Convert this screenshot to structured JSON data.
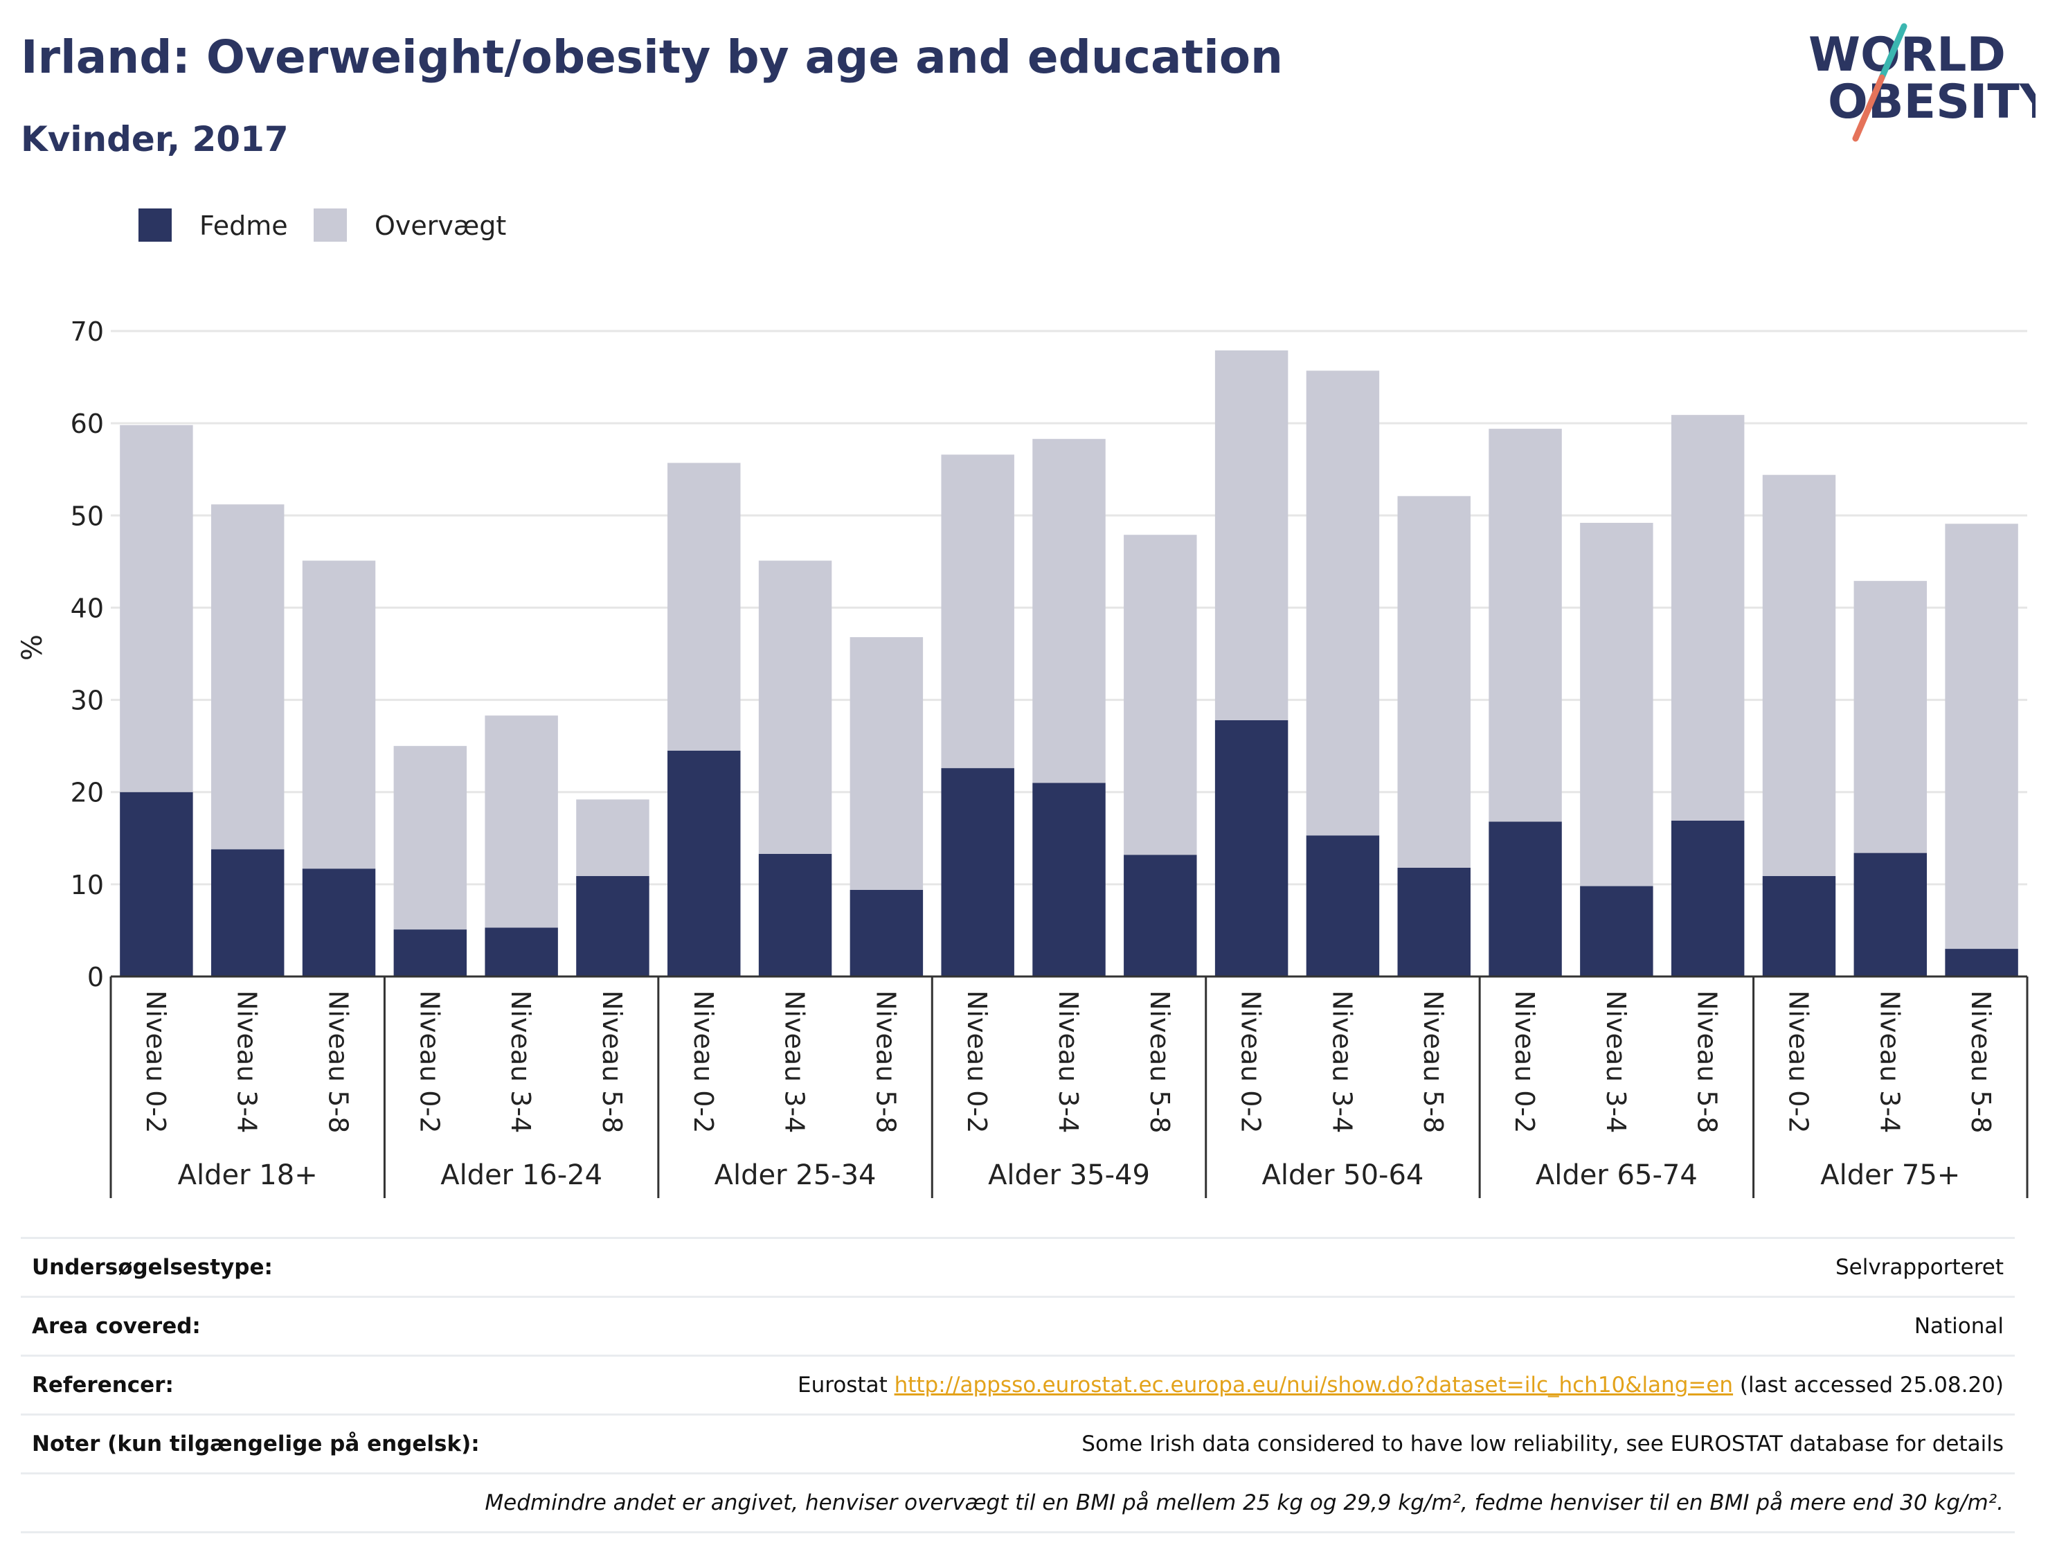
{
  "header": {
    "title": "Irland: Overweight/obesity by age and education",
    "subtitle": "Kvinder, 2017"
  },
  "logo": {
    "line1": "WORLD",
    "line2": "OBESITY"
  },
  "colors": {
    "fedme": "#2b3561",
    "overvaegt": "#c9cad6",
    "grid": "#e6e6e6",
    "link": "#e3a21a",
    "title": "#2b3561"
  },
  "chart_data": {
    "type": "bar",
    "stacked": true,
    "title": "",
    "ylabel": "%",
    "ylim": [
      0,
      70
    ],
    "yticks": [
      0,
      10,
      20,
      30,
      40,
      50,
      60,
      70
    ],
    "legend_position": "top-left",
    "groups": [
      "Alder 18+",
      "Alder 16-24",
      "Alder 25-34",
      "Alder 35-49",
      "Alder 50-64",
      "Alder 65-74",
      "Alder 75+"
    ],
    "sublevels": [
      "Niveau 0-2",
      "Niveau 3-4",
      "Niveau 5-8"
    ],
    "series": [
      {
        "name": "Fedme",
        "color": "#2b3561",
        "values": [
          20.0,
          13.8,
          11.7,
          5.1,
          5.3,
          10.9,
          24.5,
          13.3,
          9.4,
          22.6,
          21.0,
          13.2,
          27.8,
          15.3,
          11.8,
          16.8,
          9.8,
          16.9,
          10.9,
          13.4,
          3.0
        ]
      },
      {
        "name": "Overvægt",
        "color": "#c9cad6",
        "values": [
          39.8,
          37.4,
          33.4,
          19.9,
          23.0,
          8.3,
          31.2,
          31.8,
          27.4,
          34.0,
          37.3,
          34.7,
          40.1,
          50.4,
          40.3,
          42.6,
          39.4,
          44.0,
          43.5,
          29.5,
          46.1
        ]
      }
    ]
  },
  "info": [
    {
      "label": "Undersøgelsestype:",
      "value": "Selvrapporteret"
    },
    {
      "label": "Area covered:",
      "value": "National"
    },
    {
      "label": "Referencer:",
      "value_prefix": "Eurostat ",
      "link": "http://appsso.eurostat.ec.europa.eu/nui/show.do?dataset=ilc_hch10&lang=en",
      "value_suffix": " (last accessed 25.08.20)"
    },
    {
      "label": "Noter (kun tilgængelige på engelsk):",
      "value": "Some Irish data considered to have low reliability, see EUROSTAT database for details"
    }
  ],
  "footnote": "Medmindre andet er angivet, henviser overvægt til en BMI på mellem 25 kg og 29,9 kg/m², fedme henviser til en BMI på mere end 30 kg/m²."
}
